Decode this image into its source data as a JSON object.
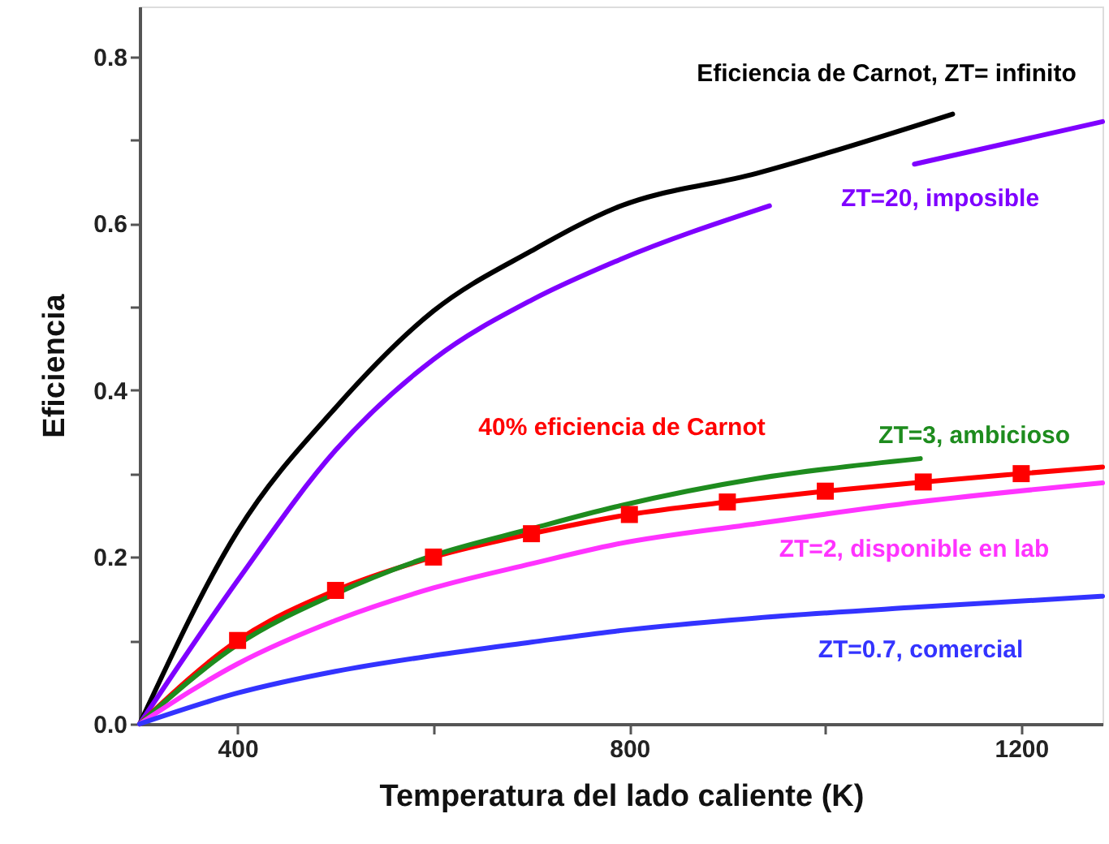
{
  "chart_data": {
    "type": "line",
    "xlabel": "Temperatura del lado caliente (K)",
    "ylabel": "Eficiencia",
    "xlim": [
      300,
      1283
    ],
    "ylim": [
      0,
      0.86
    ],
    "xticks": [
      400,
      {
        "value": 600,
        "label": null
      },
      800,
      {
        "value": 1000,
        "label": null
      },
      1200
    ],
    "yticks": [
      {
        "value": 0,
        "label": "0.0"
      },
      {
        "value": 0.1,
        "label": null
      },
      {
        "value": 0.2,
        "label": "0.2"
      },
      {
        "value": 0.3,
        "label": null
      },
      {
        "value": 0.4,
        "label": "0.4"
      },
      {
        "value": 0.5,
        "label": null
      },
      {
        "value": 0.6,
        "label": "0.6"
      },
      {
        "value": 0.7,
        "label": null
      },
      {
        "value": 0.8,
        "label": "0.8"
      }
    ],
    "grid": false,
    "marker": "none",
    "line_style": "solid",
    "series": [
      {
        "name": "Eficiencia de Carnot, ZT= infinito",
        "color": "#000000",
        "x": [
          300,
          400,
          500,
          600,
          700,
          785,
          930,
          1130
        ],
        "values": [
          0,
          0.231,
          0.379,
          0.495,
          0.567,
          0.618,
          0.66,
          0.731
        ]
      },
      {
        "name": "ZT=20, imposible",
        "color": "#7f00ff",
        "x": [
          300,
          400,
          500,
          600,
          700,
          785,
          943,
          1000,
          1091,
          1283
        ],
        "values": [
          0,
          0.172,
          0.328,
          0.437,
          0.508,
          0.554,
          0.621,
          null,
          0.671,
          0.722
        ]
      },
      {
        "name": "40% eficiencia de Carnot",
        "color": "#ff0000",
        "x": [
          300,
          400,
          500,
          600,
          700,
          800,
          900,
          1000,
          1100,
          1200,
          1283
        ],
        "values": [
          0,
          0.1,
          0.16,
          0.2,
          0.228,
          0.251,
          0.266,
          0.279,
          0.29,
          0.3,
          0.308
        ]
      },
      {
        "name": "ZT=3, ambicioso",
        "color": "#1e8c1e",
        "x": [
          300,
          400,
          500,
          600,
          700,
          785,
          930,
          1097
        ],
        "values": [
          0,
          0.095,
          0.156,
          0.202,
          0.234,
          0.26,
          0.294,
          0.318
        ]
      },
      {
        "name": "ZT=2, disponible en lab",
        "color": "#ff33ff",
        "x": [
          300,
          400,
          500,
          600,
          700,
          785,
          930,
          1095,
          1283
        ],
        "values": [
          0,
          0.072,
          0.124,
          0.163,
          0.192,
          0.215,
          0.24,
          0.266,
          0.289
        ]
      },
      {
        "name": "ZT=0.7, comercial",
        "color": "#3333ff",
        "x": [
          300,
          400,
          500,
          600,
          700,
          785,
          930,
          1095,
          1283
        ],
        "values": [
          0,
          0.037,
          0.063,
          0.082,
          0.098,
          0.111,
          0.127,
          0.14,
          0.153
        ]
      },
      {
        "type": "scatter",
        "marker": "square",
        "color": "#ff0000",
        "x": [
          400,
          500,
          600,
          700,
          800,
          900,
          1000,
          1100,
          1200
        ],
        "values": [
          0.1,
          0.16,
          0.2,
          0.228,
          0.251,
          0.266,
          0.279,
          0.29,
          0.3
        ]
      }
    ]
  }
}
